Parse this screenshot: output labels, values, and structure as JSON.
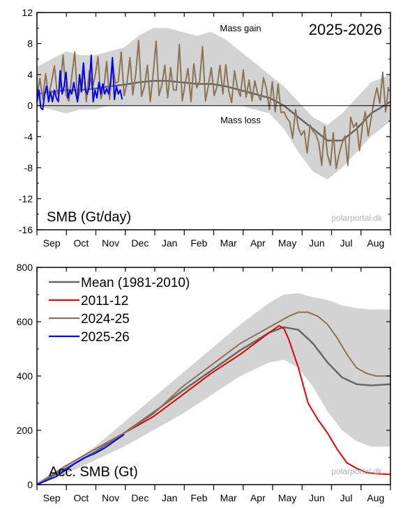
{
  "chart_data": [
    {
      "type": "line",
      "panel_label": "SMB (Gt/day)",
      "season_label": "2025-2026",
      "annotations": {
        "gain": "Mass gain",
        "loss": "Mass loss"
      },
      "watermark": "polarportal.dk",
      "months": [
        "Sep",
        "Oct",
        "Nov",
        "Dec",
        "Jan",
        "Feb",
        "Mar",
        "Apr",
        "May",
        "Jun",
        "Jul",
        "Aug"
      ],
      "y_ticks": [
        "12",
        "8",
        "4",
        "0",
        "-4",
        "-8",
        "-12",
        "-16"
      ],
      "ylim": [
        -16,
        12
      ],
      "grid": false,
      "band": {
        "x": [
          0,
          15,
          30,
          45,
          60,
          75,
          90,
          105,
          120,
          135,
          150,
          165,
          180,
          195,
          210,
          225,
          240,
          255,
          270,
          285,
          300,
          315,
          330,
          345,
          365
        ],
        "upper": [
          5,
          6,
          7,
          6.5,
          6.5,
          7,
          7.5,
          9,
          10,
          10,
          9.5,
          9,
          9.5,
          8.5,
          7,
          5.5,
          4,
          2.5,
          0.5,
          -1.5,
          -2.5,
          -1,
          1,
          3,
          4
        ],
        "lower": [
          0,
          -0.5,
          -1,
          -0.5,
          -0.5,
          0,
          0,
          0,
          0,
          0,
          0,
          0,
          0,
          0,
          0,
          -0.5,
          -1,
          -3,
          -6,
          -8.5,
          -9.5,
          -8,
          -6,
          -4,
          -2
        ]
      },
      "series": [
        {
          "name": "Mean (1981-2010)",
          "color": "#666666",
          "x": [
            0,
            15,
            30,
            45,
            60,
            75,
            90,
            105,
            120,
            135,
            150,
            165,
            180,
            195,
            210,
            225,
            240,
            255,
            270,
            285,
            300,
            315,
            330,
            345,
            365
          ],
          "values": [
            1.5,
            1.8,
            2,
            2,
            2.2,
            2.5,
            2.7,
            3,
            3.2,
            3.2,
            3,
            2.8,
            2.8,
            2.5,
            2,
            1.5,
            1,
            0,
            -1.5,
            -3,
            -4.5,
            -4.5,
            -3,
            -1,
            0.5
          ]
        },
        {
          "name": "2024-25",
          "color": "#8b7355",
          "x": [
            0,
            3,
            6,
            9,
            12,
            15,
            18,
            21,
            24,
            27,
            30,
            33,
            36,
            39,
            42,
            45,
            48,
            51,
            54,
            57,
            60,
            63,
            66,
            69,
            72,
            75,
            78,
            81,
            84,
            87,
            90,
            93,
            96,
            99,
            102,
            105,
            108,
            111,
            114,
            117,
            120,
            123,
            126,
            129,
            132,
            135,
            138,
            141,
            144,
            147,
            150,
            153,
            156,
            159,
            162,
            165,
            168,
            171,
            174,
            177,
            180,
            183,
            186,
            189,
            192,
            195,
            198,
            201,
            204,
            207,
            210,
            213,
            216,
            219,
            222,
            225,
            228,
            231,
            234,
            237,
            240,
            243,
            246,
            249,
            252,
            255,
            258,
            261,
            264,
            267,
            270,
            273,
            276,
            279,
            282,
            285,
            288,
            291,
            294,
            297,
            300,
            303,
            306,
            309,
            312,
            315,
            318,
            321,
            324,
            327,
            330,
            333,
            336,
            339,
            342,
            345,
            348,
            351,
            354,
            357,
            360,
            363
          ],
          "values": [
            1.3,
            3.5,
            0.8,
            4.1,
            1.2,
            3,
            5.1,
            1.5,
            2.5,
            6.5,
            1.4,
            0.6,
            3.8,
            6.9,
            0.7,
            2.2,
            5.4,
            0.5,
            4.5,
            2.2,
            3.8,
            6.3,
            0.9,
            2.1,
            5.7,
            0.8,
            5.6,
            2.9,
            3.1,
            6.9,
            1.3,
            2.9,
            6.2,
            1.4,
            4.1,
            8.4,
            1.2,
            2.5,
            5.2,
            0.5,
            4.1,
            8.3,
            1.3,
            2.7,
            5.2,
            1,
            4.9,
            2,
            2,
            7.9,
            0.6,
            2.8,
            4.8,
            0.5,
            5.4,
            2.3,
            3.2,
            7.6,
            0.6,
            2.6,
            4.9,
            1.3,
            2.5,
            5.2,
            1.5,
            5.3,
            1.9,
            0.4,
            4.5,
            2.3,
            1.2,
            4.6,
            1.1,
            3.3,
            0.6,
            3.2,
            1.5,
            0.7,
            3.6,
            2.1,
            -0.5,
            3.1,
            -0.8,
            2.8,
            -0.9,
            -0.8,
            -1.6,
            -2.1,
            -4.2,
            -0.5,
            -2.9,
            -3.8,
            -3.2,
            -6.1,
            -2.5,
            -3.3,
            -3.7,
            -4.8,
            -7.7,
            -2.7,
            -6.3,
            -7.7,
            -3.5,
            -8.1,
            -6.2,
            -4.9,
            -3.9,
            -7.7,
            -1.5,
            -2.8,
            -2.2,
            -5.8,
            -2.7,
            -0.8,
            -3.9,
            -1.7,
            0.6,
            2.3,
            0.3,
            4.3,
            -0.8,
            2.4
          ]
        },
        {
          "name": "2025-26",
          "color": "#0000ff",
          "x": [
            0,
            2,
            4,
            6,
            8,
            10,
            12,
            14,
            16,
            18,
            20,
            22,
            24,
            26,
            28,
            30,
            32,
            34,
            36,
            38,
            40,
            42,
            44,
            46,
            48,
            50,
            52,
            54,
            56,
            58,
            60,
            62,
            64,
            66,
            68,
            70,
            72,
            74,
            76,
            78,
            80,
            82,
            84,
            86,
            88
          ],
          "values": [
            0.5,
            2,
            -0.3,
            -0.5,
            1.5,
            2.5,
            0.5,
            1.8,
            0.5,
            2,
            1,
            0.5,
            4.5,
            1.5,
            2.5,
            4.3,
            1,
            2,
            1.5,
            3,
            1.6,
            0.5,
            4,
            1.8,
            5.5,
            2,
            1.5,
            2.5,
            6.5,
            0.5,
            2,
            1,
            3,
            1.5,
            2.8,
            1.5,
            2.2,
            1.5,
            3,
            6.2,
            0.8,
            2.5,
            1.5,
            2,
            0.8
          ]
        }
      ]
    },
    {
      "type": "line",
      "panel_label": "Acc. SMB (Gt)",
      "watermark": "polarportal.dk",
      "months": [
        "Sep",
        "Oct",
        "Nov",
        "Dec",
        "Jan",
        "Feb",
        "Mar",
        "Apr",
        "May",
        "Jun",
        "Jul",
        "Aug"
      ],
      "y_ticks": [
        "800",
        "600",
        "400",
        "200",
        "0"
      ],
      "ylim": [
        0,
        800
      ],
      "grid": false,
      "legend": "top-left",
      "band": {
        "x": [
          0,
          30,
          60,
          90,
          120,
          150,
          180,
          210,
          240,
          255,
          270,
          285,
          300,
          315,
          330,
          345,
          365
        ],
        "upper": [
          10,
          70,
          140,
          230,
          320,
          410,
          500,
          590,
          670,
          700,
          705,
          690,
          680,
          660,
          650,
          645,
          645
        ],
        "lower": [
          0,
          40,
          90,
          140,
          200,
          260,
          330,
          400,
          450,
          460,
          430,
          360,
          270,
          200,
          160,
          140,
          140
        ]
      },
      "series": [
        {
          "name": "Mean (1981-2010)",
          "color": "#666666",
          "x": [
            0,
            30,
            60,
            90,
            120,
            150,
            180,
            210,
            240,
            255,
            270,
            285,
            300,
            315,
            330,
            345,
            365
          ],
          "values": [
            0,
            60,
            120,
            190,
            265,
            345,
            420,
            495,
            560,
            580,
            570,
            520,
            450,
            395,
            370,
            365,
            370
          ]
        },
        {
          "name": "2011-12",
          "color": "#e60000",
          "x": [
            0,
            30,
            60,
            90,
            120,
            150,
            180,
            210,
            240,
            250,
            255,
            260,
            270,
            280,
            290,
            300,
            310,
            320,
            330,
            340,
            350,
            365
          ],
          "values": [
            0,
            70,
            130,
            190,
            250,
            330,
            410,
            480,
            560,
            585,
            575,
            535,
            430,
            300,
            240,
            190,
            130,
            80,
            60,
            45,
            40,
            38
          ]
        },
        {
          "name": "2024-25",
          "color": "#8b7355",
          "x": [
            0,
            30,
            60,
            90,
            120,
            150,
            180,
            210,
            240,
            260,
            270,
            280,
            290,
            300,
            310,
            320,
            330,
            340,
            350,
            365
          ],
          "values": [
            0,
            70,
            130,
            190,
            260,
            360,
            440,
            520,
            580,
            620,
            635,
            635,
            620,
            590,
            540,
            480,
            430,
            410,
            400,
            400
          ]
        },
        {
          "name": "2025-26",
          "color": "#0000ff",
          "x": [
            0,
            10,
            20,
            30,
            40,
            50,
            60,
            70,
            80,
            90
          ],
          "values": [
            0,
            15,
            30,
            55,
            80,
            100,
            115,
            135,
            160,
            185
          ]
        }
      ]
    }
  ]
}
